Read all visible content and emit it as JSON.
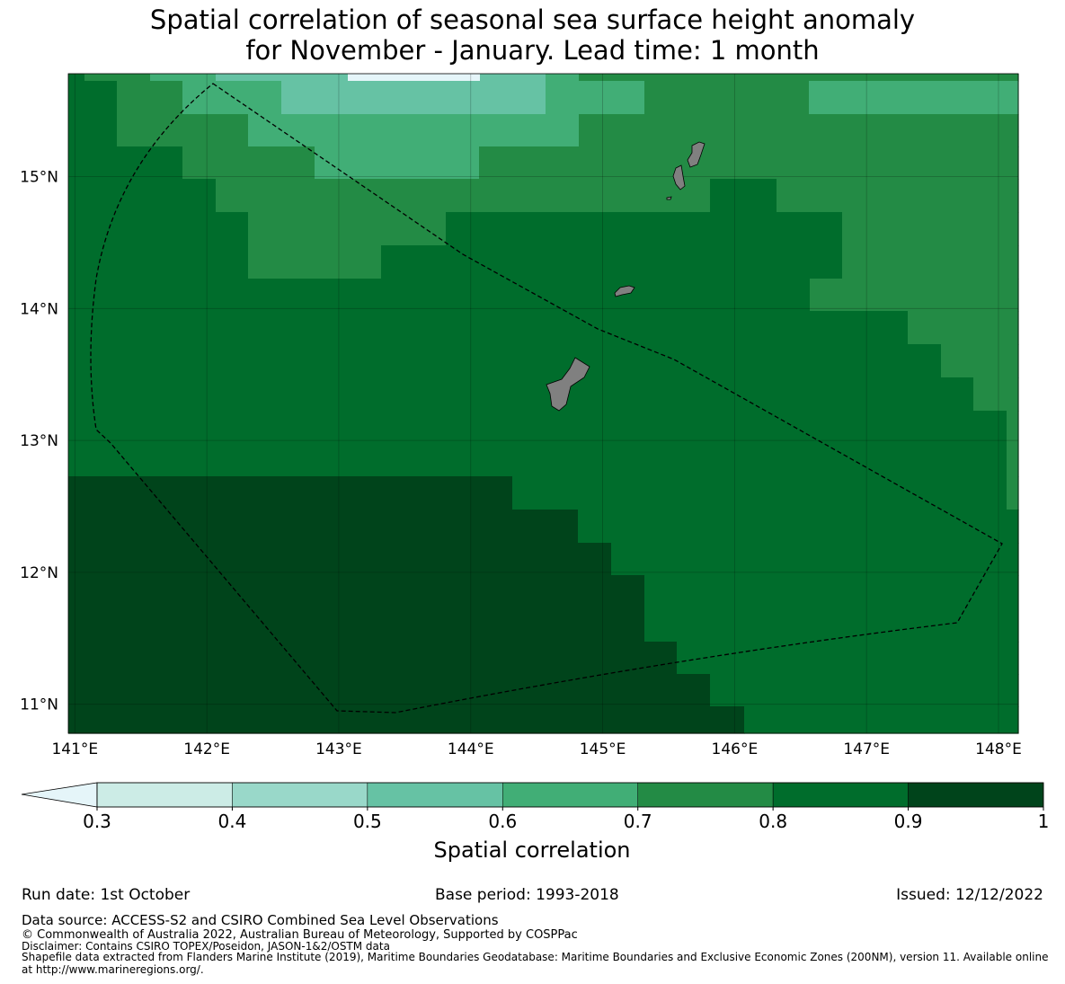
{
  "title_line1": "Spatial correlation of seasonal sea surface height anomaly",
  "title_line2": "for November - January. Lead time: 1 month",
  "map": {
    "lon_range": [
      140.95,
      148.15
    ],
    "lat_range": [
      10.78,
      15.78
    ],
    "x_ticks": [
      {
        "lon": 141,
        "label": "141°E"
      },
      {
        "lon": 142,
        "label": "142°E"
      },
      {
        "lon": 143,
        "label": "143°E"
      },
      {
        "lon": 144,
        "label": "144°E"
      },
      {
        "lon": 145,
        "label": "145°E"
      },
      {
        "lon": 146,
        "label": "146°E"
      },
      {
        "lon": 147,
        "label": "147°E"
      },
      {
        "lon": 148,
        "label": "148°E"
      }
    ],
    "y_ticks": [
      {
        "lat": 15,
        "label": "15°N"
      },
      {
        "lat": 14,
        "label": "14°N"
      },
      {
        "lat": 13,
        "label": "13°N"
      },
      {
        "lat": 12,
        "label": "12°N"
      },
      {
        "lat": 11,
        "label": "11°N"
      }
    ],
    "land_color": "#808080",
    "boundary_style": "dashed black line (EEZ)"
  },
  "colorbar": {
    "label": "Spatial correlation",
    "boundaries": [
      0.3,
      0.4,
      0.5,
      0.6,
      0.7,
      0.8,
      0.9,
      1
    ],
    "tick_labels": [
      "0.3",
      "0.4",
      "0.5",
      "0.6",
      "0.7",
      "0.8",
      "0.9",
      "1"
    ],
    "colors": [
      "#ccece6",
      "#99d8c9",
      "#66c2a4",
      "#41ae76",
      "#238b45",
      "#006d2c",
      "#00441b"
    ],
    "under_color": "#e5f5f9",
    "extend": "min"
  },
  "footer": {
    "run_date": "Run date: 1st October",
    "base_period": "Base period: 1993-2018",
    "issued": "Issued: 12/12/2022",
    "data_source": "Data source: ACCESS-S2 and CSIRO Combined Sea Level Observations",
    "copyright": "© Commonwealth of Australia 2022, Australian Bureau of Meteorology, Supported by COSPPac",
    "disclaimer": "Disclaimer: Contains CSIRO TOPEX/Poseidon, JASON-1&2/OSTM data",
    "shapefile_1": "Shapefile data extracted from Flanders Marine Institute (2019), Maritime Boundaries Geodatabase: Maritime Boundaries and Exclusive Economic Zones (200NM), version 11. Available online",
    "shapefile_2": "at http://www.marineregions.org/."
  }
}
